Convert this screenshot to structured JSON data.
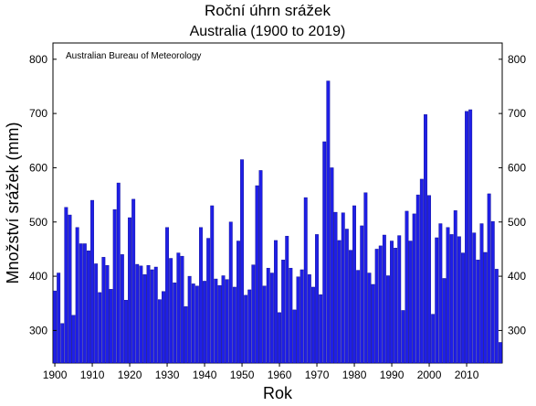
{
  "chart_data": {
    "type": "bar",
    "title": "Roční úhrn srážek",
    "subtitle": "Australia (1900 to 2019)",
    "annotation": "Australian Bureau of Meteorology",
    "xlabel": "Rok",
    "ylabel": "Množství srážek (mm)",
    "ylim": [
      240,
      830
    ],
    "xlim": [
      1900,
      2019
    ],
    "yticks": [
      300,
      400,
      500,
      600,
      700,
      800
    ],
    "xticks": [
      1900,
      1910,
      1920,
      1930,
      1940,
      1950,
      1960,
      1970,
      1980,
      1990,
      2000,
      2010
    ],
    "bar_color": "#1f1fe6",
    "grid": false,
    "years": [
      1900,
      1901,
      1902,
      1903,
      1904,
      1905,
      1906,
      1907,
      1908,
      1909,
      1910,
      1911,
      1912,
      1913,
      1914,
      1915,
      1916,
      1917,
      1918,
      1919,
      1920,
      1921,
      1922,
      1923,
      1924,
      1925,
      1926,
      1927,
      1928,
      1929,
      1930,
      1931,
      1932,
      1933,
      1934,
      1935,
      1936,
      1937,
      1938,
      1939,
      1940,
      1941,
      1942,
      1943,
      1944,
      1945,
      1946,
      1947,
      1948,
      1949,
      1950,
      1951,
      1952,
      1953,
      1954,
      1955,
      1956,
      1957,
      1958,
      1959,
      1960,
      1961,
      1962,
      1963,
      1964,
      1965,
      1966,
      1967,
      1968,
      1969,
      1970,
      1971,
      1972,
      1973,
      1974,
      1975,
      1976,
      1977,
      1978,
      1979,
      1980,
      1981,
      1982,
      1983,
      1984,
      1985,
      1986,
      1987,
      1988,
      1989,
      1990,
      1991,
      1992,
      1993,
      1994,
      1995,
      1996,
      1997,
      1998,
      1999,
      2000,
      2001,
      2002,
      2003,
      2004,
      2005,
      2006,
      2007,
      2008,
      2009,
      2010,
      2011,
      2012,
      2013,
      2014,
      2015,
      2016,
      2017,
      2018,
      2019
    ],
    "values": [
      373,
      406,
      313,
      527,
      513,
      328,
      490,
      460,
      460,
      447,
      540,
      423,
      370,
      435,
      420,
      376,
      523,
      572,
      440,
      356,
      508,
      542,
      422,
      419,
      403,
      420,
      412,
      417,
      357,
      372,
      490,
      433,
      388,
      443,
      437,
      344,
      400,
      386,
      382,
      490,
      391,
      470,
      530,
      395,
      383,
      401,
      394,
      500,
      380,
      465,
      615,
      365,
      375,
      421,
      567,
      595,
      382,
      415,
      406,
      466,
      333,
      430,
      474,
      415,
      338,
      399,
      412,
      545,
      403,
      380,
      477,
      366,
      648,
      760,
      600,
      518,
      466,
      517,
      487,
      448,
      530,
      411,
      493,
      554,
      406,
      385,
      450,
      456,
      476,
      401,
      465,
      452,
      475,
      337,
      520,
      465,
      515,
      550,
      579,
      698,
      549,
      330,
      471,
      497,
      396,
      490,
      477,
      521,
      473,
      443,
      704,
      707,
      480,
      430,
      497,
      444,
      552,
      501,
      413,
      278
    ]
  }
}
